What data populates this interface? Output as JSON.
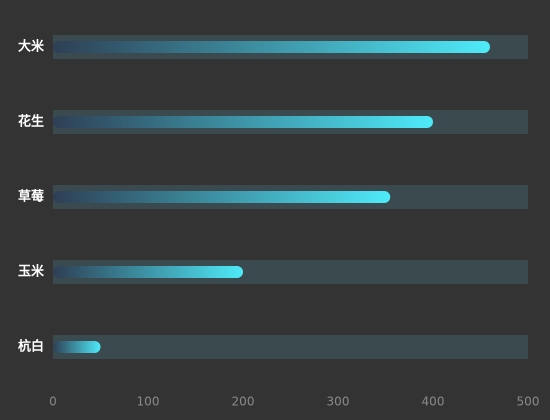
{
  "chart_data": {
    "type": "bar",
    "orientation": "horizontal",
    "categories": [
      "大米",
      "花生",
      "草莓",
      "玉米",
      "杭白"
    ],
    "values": [
      460,
      400,
      355,
      200,
      50
    ],
    "gradient": [
      "#2e3f55",
      "#4eeaf9"
    ],
    "track_color": "#3a4a4f",
    "xlim": [
      0,
      500
    ],
    "xticks": [
      0,
      100,
      200,
      300,
      400,
      500
    ]
  }
}
